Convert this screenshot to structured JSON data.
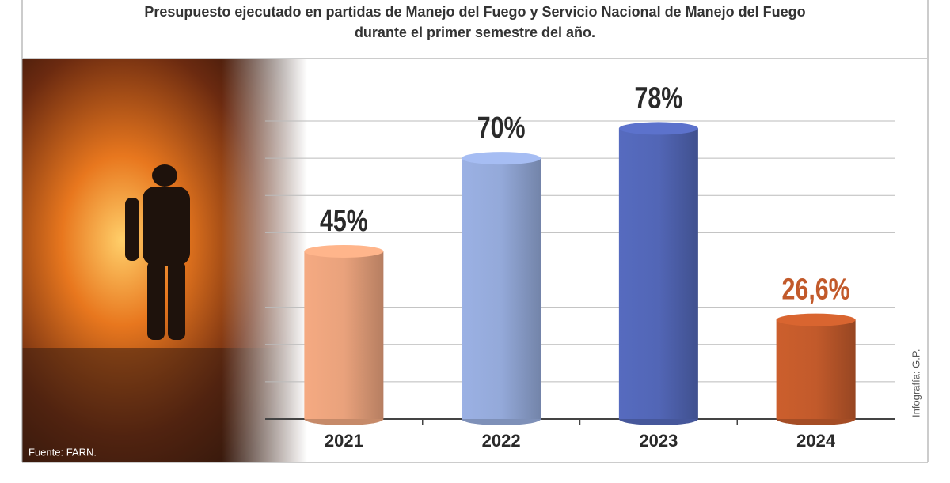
{
  "chart_data": {
    "type": "bar",
    "title": "Presupuesto ejecutado en partidas de Manejo del Fuego y Servicio Nacional de Manejo del Fuego durante el primer semestre del año.",
    "categories": [
      "2021",
      "2022",
      "2023",
      "2024"
    ],
    "values": [
      45,
      70,
      78,
      26.6
    ],
    "value_labels": [
      "45%",
      "70%",
      "78%",
      "26,6%"
    ],
    "colors": [
      "#e9a27c",
      "#94a9d9",
      "#5266b6",
      "#c25a2b"
    ],
    "ylim": [
      0,
      80
    ],
    "yticks": [
      0,
      10,
      20,
      30,
      40,
      50,
      60,
      70,
      80
    ],
    "grid": true,
    "source": "Fuente: FARN.",
    "credit": "Infografía: G.P."
  }
}
